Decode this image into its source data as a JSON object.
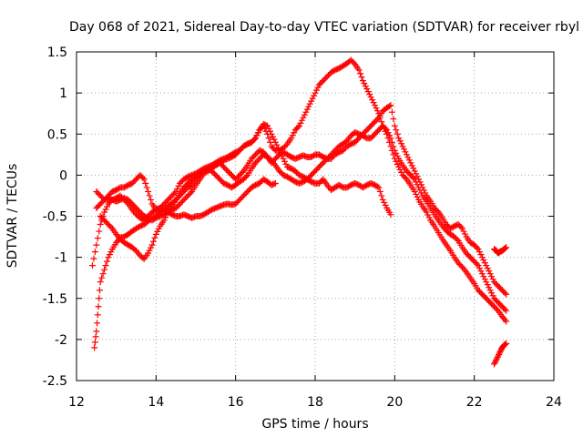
{
  "chart_data": {
    "type": "scatter",
    "title": "Day 068 of 2021, Sidereal Day-to-day VTEC variation (SDTVAR) for receiver rbyl",
    "xlabel": "GPS time / hours",
    "ylabel": "SDTVAR / TECUs",
    "xlim": [
      12,
      24
    ],
    "ylim": [
      -2.5,
      1.5
    ],
    "xticks": [
      "12",
      "14",
      "16",
      "18",
      "20",
      "22",
      "24"
    ],
    "yticks": [
      "1.5",
      "1",
      "0.5",
      "0",
      "-0.5",
      "-1",
      "-1.5",
      "-2",
      "-2.5"
    ],
    "grid": true,
    "marker": "+",
    "series_color": "#ff0000",
    "series": [
      {
        "x": [
          12.45,
          12.5,
          12.55,
          12.6,
          12.7,
          12.8,
          12.9,
          13.0,
          13.1,
          13.2,
          13.3,
          13.4,
          13.5,
          13.6,
          13.7,
          13.8,
          13.9,
          14.0,
          14.1,
          14.2,
          14.3,
          14.4,
          14.5,
          14.6,
          14.7,
          14.8,
          14.9,
          15.0,
          15.1,
          15.2,
          15.3,
          15.4,
          15.5,
          15.6,
          15.7,
          15.8,
          15.9,
          16.0,
          16.1,
          16.2,
          16.3,
          16.4,
          16.5,
          16.6,
          16.7,
          16.8,
          16.9,
          17.0,
          17.1,
          17.2,
          17.3,
          17.4,
          17.5,
          17.6,
          17.7,
          17.8,
          17.9,
          18.0,
          18.1,
          18.2,
          18.3,
          18.4,
          18.5,
          18.6,
          18.7,
          18.8,
          18.9,
          19.0,
          19.1,
          19.2,
          19.3,
          19.4,
          19.5,
          19.6,
          19.7,
          19.8,
          19.9,
          20.0,
          20.1,
          20.2,
          20.3,
          20.4,
          20.5,
          20.6,
          20.7,
          20.8,
          20.9,
          21.0,
          21.1,
          21.2,
          21.3,
          21.4,
          21.5,
          21.6,
          21.7,
          21.8,
          21.9,
          22.0,
          22.1,
          22.2,
          22.3,
          22.4,
          22.5,
          22.6,
          22.7,
          22.8
        ],
        "y": [
          -2.1,
          -1.9,
          -1.6,
          -1.3,
          -1.15,
          -1.0,
          -0.9,
          -0.82,
          -0.76,
          -0.75,
          -0.72,
          -0.68,
          -0.65,
          -0.62,
          -0.6,
          -0.56,
          -0.52,
          -0.5,
          -0.45,
          -0.42,
          -0.38,
          -0.34,
          -0.3,
          -0.25,
          -0.2,
          -0.15,
          -0.12,
          -0.05,
          0.0,
          0.05,
          0.1,
          0.12,
          0.15,
          0.18,
          0.2,
          0.22,
          0.25,
          0.28,
          0.3,
          0.35,
          0.38,
          0.4,
          0.45,
          0.55,
          0.6,
          0.5,
          0.35,
          0.3,
          0.3,
          0.33,
          0.38,
          0.45,
          0.55,
          0.6,
          0.7,
          0.8,
          0.9,
          1.0,
          1.1,
          1.15,
          1.2,
          1.25,
          1.28,
          1.3,
          1.33,
          1.36,
          1.4,
          1.35,
          1.28,
          1.15,
          1.05,
          0.95,
          0.85,
          0.75,
          0.6,
          0.5,
          0.35,
          0.2,
          0.1,
          0.0,
          -0.05,
          -0.12,
          -0.2,
          -0.3,
          -0.38,
          -0.45,
          -0.55,
          -0.62,
          -0.7,
          -0.78,
          -0.85,
          -0.92,
          -1.0,
          -1.07,
          -1.12,
          -1.18,
          -1.25,
          -1.32,
          -1.4,
          -1.45,
          -1.5,
          -1.55,
          -1.6,
          -1.65,
          -1.72,
          -1.78
        ]
      },
      {
        "x": [
          12.5,
          12.6,
          12.7,
          12.8,
          12.9,
          13.0,
          13.1,
          13.2,
          13.3,
          13.4,
          13.5,
          13.6,
          13.7,
          13.8,
          13.9,
          14.0,
          14.1,
          14.2,
          14.3,
          14.4,
          14.5,
          14.6,
          14.7,
          14.8,
          14.9,
          15.0,
          15.1,
          15.2,
          15.3,
          15.4,
          15.5,
          15.6,
          15.7,
          15.8,
          15.9,
          16.0,
          16.1,
          16.2,
          16.3,
          16.4,
          16.5,
          16.6,
          16.7,
          16.8,
          16.9,
          17.0,
          17.1,
          17.2,
          17.3,
          17.4,
          17.5,
          17.6,
          17.7,
          17.8,
          17.9,
          18.0,
          18.1,
          18.2,
          18.3,
          18.4,
          18.5,
          18.6,
          18.7,
          18.8,
          18.9,
          19.0,
          19.1,
          19.2,
          19.3,
          19.4,
          19.5,
          19.6,
          19.7,
          19.8,
          19.9,
          20.0,
          20.1,
          20.2,
          20.3,
          20.4,
          20.5,
          20.6,
          20.7,
          20.8,
          20.9,
          21.0,
          21.1,
          21.2,
          21.3,
          21.4,
          21.5,
          21.6,
          21.7,
          21.8,
          21.9,
          22.0,
          22.1,
          22.2,
          22.3,
          22.4,
          22.5,
          22.6,
          22.7,
          22.8
        ],
        "y": [
          -0.2,
          -0.25,
          -0.3,
          -0.28,
          -0.3,
          -0.32,
          -0.3,
          -0.28,
          -0.3,
          -0.35,
          -0.4,
          -0.45,
          -0.5,
          -0.52,
          -0.55,
          -0.52,
          -0.5,
          -0.48,
          -0.45,
          -0.42,
          -0.4,
          -0.35,
          -0.3,
          -0.25,
          -0.2,
          -0.12,
          -0.05,
          0.02,
          0.05,
          0.08,
          0.12,
          0.15,
          0.1,
          0.05,
          0.0,
          -0.05,
          0.0,
          0.05,
          0.12,
          0.2,
          0.25,
          0.3,
          0.28,
          0.22,
          0.15,
          0.2,
          0.25,
          0.28,
          0.25,
          0.22,
          0.2,
          0.22,
          0.24,
          0.22,
          0.22,
          0.25,
          0.25,
          0.22,
          0.2,
          0.2,
          0.25,
          0.28,
          0.3,
          0.35,
          0.38,
          0.4,
          0.45,
          0.5,
          0.55,
          0.6,
          0.65,
          0.7,
          0.78,
          0.82,
          0.85,
          0.6,
          0.45,
          0.35,
          0.25,
          0.15,
          0.05,
          -0.05,
          -0.15,
          -0.25,
          -0.32,
          -0.4,
          -0.45,
          -0.52,
          -0.6,
          -0.65,
          -0.62,
          -0.6,
          -0.65,
          -0.75,
          -0.82,
          -0.85,
          -0.9,
          -1.0,
          -1.1,
          -1.2,
          -1.3,
          -1.35,
          -1.4,
          -1.45
        ]
      },
      {
        "x": [
          12.5,
          12.6,
          12.7,
          12.8,
          12.9,
          13.0,
          13.1,
          13.2,
          13.3,
          13.4,
          13.5,
          13.6,
          13.7,
          13.8,
          13.9,
          14.0,
          14.1,
          14.2,
          14.3,
          14.4,
          14.5,
          14.6,
          14.7,
          14.8,
          14.9,
          15.0,
          15.1,
          15.2,
          15.3,
          15.4,
          15.5,
          15.6,
          15.7,
          15.8,
          15.9,
          16.0,
          16.1,
          16.2,
          16.3,
          16.4,
          16.5,
          16.6,
          16.7,
          16.8,
          16.9,
          17.0,
          17.1,
          17.2,
          17.3,
          17.4,
          17.5,
          17.6,
          17.7,
          17.8,
          17.9,
          18.0,
          18.1,
          18.2,
          18.3,
          18.4,
          18.5,
          18.6,
          18.7,
          18.8,
          18.9,
          19.0,
          19.1,
          19.2,
          19.3,
          19.4,
          19.5,
          19.6,
          19.7,
          19.8,
          19.9
        ],
        "y": [
          -0.4,
          -0.35,
          -0.3,
          -0.25,
          -0.2,
          -0.18,
          -0.15,
          -0.15,
          -0.12,
          -0.1,
          -0.05,
          0.0,
          -0.05,
          -0.2,
          -0.35,
          -0.42,
          -0.4,
          -0.35,
          -0.3,
          -0.25,
          -0.2,
          -0.1,
          -0.05,
          -0.02,
          0.0,
          0.02,
          0.05,
          0.08,
          0.1,
          0.1,
          0.12,
          0.15,
          0.18,
          0.2,
          0.22,
          0.25,
          0.3,
          0.35,
          0.38,
          0.4,
          0.45,
          0.55,
          0.62,
          0.6,
          0.5,
          0.4,
          0.3,
          0.2,
          0.1,
          0.08,
          0.05,
          0.0,
          -0.02,
          -0.05,
          -0.08,
          -0.1,
          -0.1,
          -0.05,
          -0.12,
          -0.18,
          -0.15,
          -0.12,
          -0.15,
          -0.15,
          -0.12,
          -0.1,
          -0.12,
          -0.15,
          -0.12,
          -0.1,
          -0.12,
          -0.15,
          -0.3,
          -0.4,
          -0.48
        ]
      },
      {
        "x": [
          12.6,
          12.7,
          12.8,
          12.9,
          13.0,
          13.1,
          13.2,
          13.3,
          13.4,
          13.5,
          13.6,
          13.7,
          13.8,
          13.9,
          14.0,
          14.1,
          14.2,
          14.3,
          14.4,
          14.5,
          14.6,
          14.7,
          14.8,
          14.9,
          15.0,
          15.1,
          15.2,
          15.3,
          15.4,
          15.5,
          15.6,
          15.7,
          15.8,
          15.9,
          16.0,
          16.1,
          16.2,
          16.3,
          16.4,
          16.5,
          16.6,
          16.7,
          16.8,
          16.9,
          17.0,
          17.1,
          17.2,
          17.3,
          17.4,
          17.5,
          17.6,
          17.7,
          17.8,
          17.9,
          18.0,
          18.1,
          18.2,
          18.3,
          18.4,
          18.5,
          18.6,
          18.7,
          18.8,
          18.9,
          19.0,
          19.1,
          19.2,
          19.3,
          19.4,
          19.5,
          19.6,
          19.7,
          19.8,
          19.9,
          20.0,
          20.1,
          20.2,
          20.3,
          20.4,
          20.5,
          20.6,
          20.7,
          20.8,
          20.9,
          21.0,
          21.1,
          21.2,
          21.3,
          21.4,
          21.5,
          21.6,
          21.7,
          21.8,
          21.9,
          22.0,
          22.1,
          22.2,
          22.3,
          22.4,
          22.5,
          22.6,
          22.7,
          22.8
        ],
        "y": [
          -0.5,
          -0.55,
          -0.6,
          -0.65,
          -0.72,
          -0.78,
          -0.82,
          -0.85,
          -0.88,
          -0.92,
          -0.98,
          -1.02,
          -0.95,
          -0.85,
          -0.72,
          -0.62,
          -0.55,
          -0.45,
          -0.38,
          -0.3,
          -0.22,
          -0.15,
          -0.1,
          -0.05,
          -0.02,
          0.02,
          0.05,
          0.08,
          0.05,
          0.0,
          -0.05,
          -0.1,
          -0.12,
          -0.15,
          -0.12,
          -0.08,
          -0.05,
          0.0,
          0.08,
          0.15,
          0.2,
          0.25,
          0.22,
          0.18,
          0.12,
          0.05,
          0.0,
          -0.02,
          -0.05,
          -0.08,
          -0.1,
          -0.08,
          -0.05,
          0.0,
          0.05,
          0.1,
          0.15,
          0.2,
          0.25,
          0.3,
          0.35,
          0.38,
          0.42,
          0.48,
          0.52,
          0.5,
          0.48,
          0.45,
          0.45,
          0.5,
          0.55,
          0.6,
          0.55,
          0.45,
          0.3,
          0.2,
          0.12,
          0.05,
          0.0,
          -0.05,
          -0.15,
          -0.25,
          -0.32,
          -0.4,
          -0.48,
          -0.55,
          -0.62,
          -0.68,
          -0.72,
          -0.75,
          -0.8,
          -0.88,
          -0.95,
          -1.0,
          -1.05,
          -1.1,
          -1.2,
          -1.3,
          -1.4,
          -1.5,
          -1.55,
          -1.6,
          -1.65
        ]
      },
      {
        "x": [
          12.4,
          12.5,
          12.6,
          12.7,
          12.8,
          12.9,
          13.0,
          13.1,
          13.2,
          13.3,
          13.4,
          13.5,
          13.6,
          13.7,
          13.8,
          13.9,
          14.0,
          14.1,
          14.2,
          14.3,
          14.4,
          14.5,
          14.6,
          14.7,
          14.8,
          14.9,
          15.0,
          15.1,
          15.2,
          15.3,
          15.4,
          15.5,
          15.6,
          15.7,
          15.8,
          15.9,
          16.0,
          16.1,
          16.2,
          16.3,
          16.4,
          16.5,
          16.6,
          16.7,
          16.8,
          16.9,
          17.0
        ],
        "y": [
          -1.1,
          -0.85,
          -0.6,
          -0.45,
          -0.35,
          -0.3,
          -0.28,
          -0.25,
          -0.3,
          -0.35,
          -0.42,
          -0.48,
          -0.52,
          -0.55,
          -0.5,
          -0.45,
          -0.42,
          -0.4,
          -0.42,
          -0.45,
          -0.48,
          -0.5,
          -0.5,
          -0.48,
          -0.5,
          -0.52,
          -0.5,
          -0.5,
          -0.48,
          -0.45,
          -0.42,
          -0.4,
          -0.38,
          -0.36,
          -0.35,
          -0.36,
          -0.35,
          -0.3,
          -0.25,
          -0.2,
          -0.15,
          -0.12,
          -0.1,
          -0.05,
          -0.08,
          -0.12,
          -0.1
        ]
      },
      {
        "x": [
          22.5,
          22.55,
          22.6,
          22.65,
          22.7,
          22.75,
          22.8
        ],
        "y": [
          -2.3,
          -2.25,
          -2.2,
          -2.15,
          -2.1,
          -2.07,
          -2.05
        ]
      },
      {
        "x": [
          22.5,
          22.55,
          22.6,
          22.65,
          22.7,
          22.75,
          22.8
        ],
        "y": [
          -0.9,
          -0.92,
          -0.95,
          -0.93,
          -0.92,
          -0.9,
          -0.88
        ]
      }
    ]
  }
}
